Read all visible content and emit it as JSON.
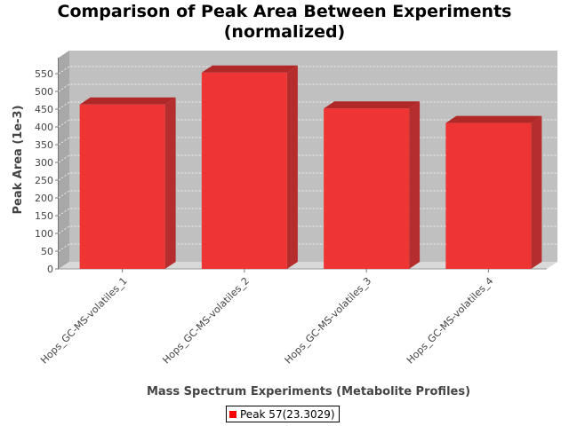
{
  "chart_data": {
    "type": "bar",
    "title_line1": "Comparison of Peak Area Between Experiments",
    "title_line2": "(normalized)",
    "xlabel": "Mass Spectrum Experiments (Metabolite Profiles)",
    "ylabel": "Peak Area (1e-3)",
    "categories": [
      "Hops_GC-MS-volatiles_1",
      "Hops_GC-MS-volatiles_2",
      "Hops_GC-MS-volatiles_3",
      "Hops_GC-MS-volatiles_4"
    ],
    "series": [
      {
        "name": "Peak 57(23.3029)",
        "values": [
          463,
          553,
          452,
          411
        ]
      }
    ],
    "yticks": [
      0,
      50,
      100,
      150,
      200,
      250,
      300,
      350,
      400,
      450,
      500,
      550
    ],
    "ylim": [
      0,
      575
    ],
    "grid": true,
    "legend_position": "bottom",
    "colors": {
      "bar_front": "#ef3434",
      "bar_top": "#b02828",
      "bar_side": "#b52d2d",
      "plot_background": "#c0c0c0",
      "plot_floor": "#d9d9d9",
      "plot_wall": "#a8a8a8",
      "grid": "#ffffff"
    }
  }
}
